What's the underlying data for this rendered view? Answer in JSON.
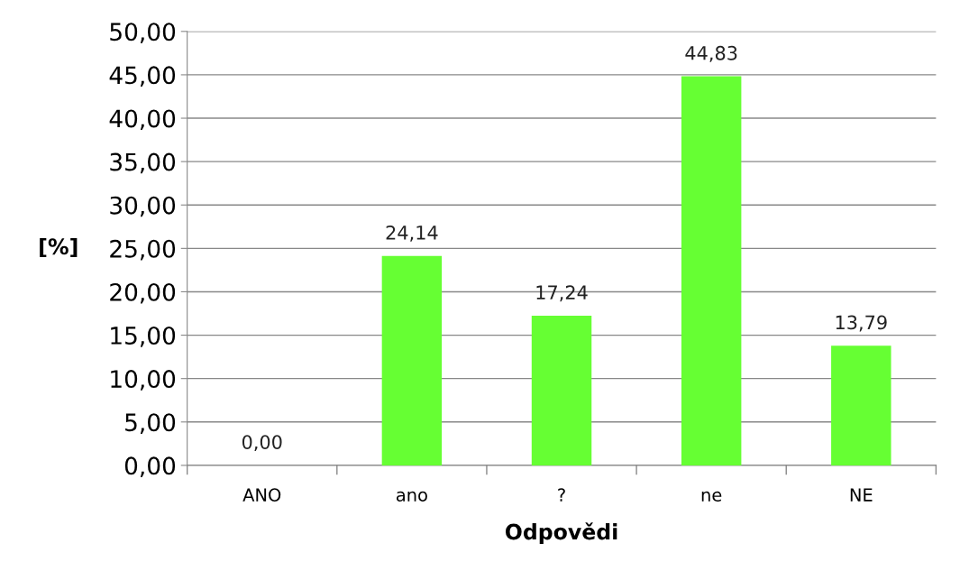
{
  "chart_data": {
    "type": "bar",
    "xlabel": "Odpovědi",
    "ylabel": "[%]",
    "categories": [
      "ANO",
      "ano",
      "?",
      "ne",
      "NE"
    ],
    "values": [
      0.0,
      24.14,
      17.24,
      44.83,
      13.79
    ],
    "value_labels": [
      "0,00",
      "24,14",
      "17,24",
      "44,83",
      "13,79"
    ],
    "color": "#66ff33",
    "ylim": [
      0,
      50
    ],
    "yticks": [
      {
        "value": 0,
        "label": "0,00"
      },
      {
        "value": 5,
        "label": "5,00"
      },
      {
        "value": 10,
        "label": "10,00"
      },
      {
        "value": 15,
        "label": "15,00"
      },
      {
        "value": 20,
        "label": "20,00"
      },
      {
        "value": 25,
        "label": "25,00"
      },
      {
        "value": 30,
        "label": "30,00"
      },
      {
        "value": 35,
        "label": "35,00"
      },
      {
        "value": 40,
        "label": "40,00"
      },
      {
        "value": 45,
        "label": "45,00"
      },
      {
        "value": 50,
        "label": "50,00"
      }
    ],
    "grid": "y",
    "legend": false
  }
}
